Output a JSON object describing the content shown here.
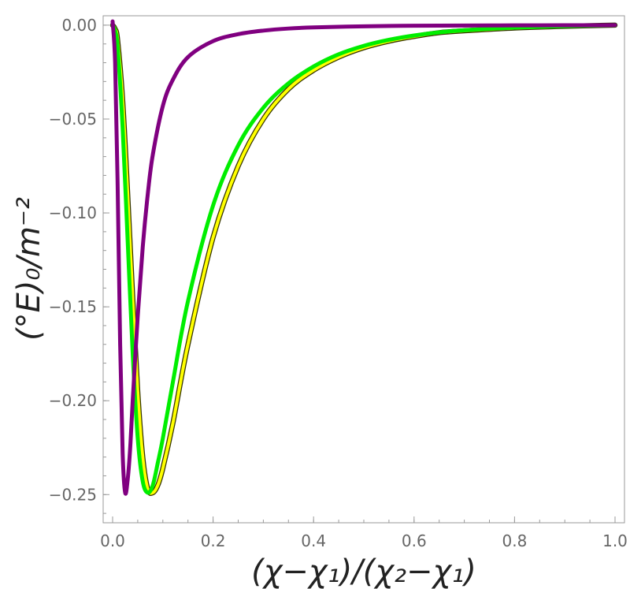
{
  "chart_data": {
    "type": "line",
    "title": "",
    "xlabel": "(χ−χ₁)/(χ₂−χ₁)",
    "ylabel": "(°E)₀/m⁻²",
    "xlim": [
      0,
      1
    ],
    "ylim": [
      -0.265,
      0.005
    ],
    "grid": false,
    "legend": "none",
    "x_ticks": [
      {
        "value": 0.0,
        "label": "0.0"
      },
      {
        "value": 0.2,
        "label": "0.2"
      },
      {
        "value": 0.4,
        "label": "0.4"
      },
      {
        "value": 0.6,
        "label": "0.6"
      },
      {
        "value": 0.8,
        "label": "0.8"
      },
      {
        "value": 1.0,
        "label": "1.0"
      }
    ],
    "y_ticks": [
      {
        "value": 0.0,
        "label": "0.00"
      },
      {
        "value": -0.05,
        "label": "-0.05"
      },
      {
        "value": -0.1,
        "label": "-0.10"
      },
      {
        "value": -0.15,
        "label": "-0.15"
      },
      {
        "value": -0.2,
        "label": "-0.20"
      },
      {
        "value": -0.25,
        "label": "-0.25"
      }
    ],
    "series": [
      {
        "color": "#ffff00",
        "outline": "#333300",
        "x": [
          0.0,
          0.005,
          0.01,
          0.02,
          0.03,
          0.04,
          0.05,
          0.06,
          0.07,
          0.08,
          0.09,
          0.1,
          0.12,
          0.15,
          0.2,
          0.25,
          0.3,
          0.35,
          0.4,
          0.45,
          0.5,
          0.55,
          0.6,
          0.65,
          0.7,
          0.8,
          0.9,
          1.0
        ],
        "y": [
          0.0,
          -0.002,
          -0.008,
          -0.04,
          -0.09,
          -0.145,
          -0.195,
          -0.23,
          -0.247,
          -0.249,
          -0.245,
          -0.236,
          -0.212,
          -0.17,
          -0.113,
          -0.075,
          -0.05,
          -0.034,
          -0.024,
          -0.017,
          -0.012,
          -0.0085,
          -0.006,
          -0.004,
          -0.003,
          -0.0015,
          -0.0006,
          0.0
        ]
      },
      {
        "color": "#00ee00",
        "outline": "",
        "x": [
          0.0,
          0.005,
          0.01,
          0.02,
          0.03,
          0.04,
          0.05,
          0.06,
          0.07,
          0.08,
          0.09,
          0.1,
          0.12,
          0.15,
          0.2,
          0.25,
          0.3,
          0.35,
          0.4,
          0.45,
          0.5,
          0.55,
          0.6,
          0.65,
          0.7,
          0.8,
          0.9,
          1.0
        ],
        "y": [
          0.0,
          -0.003,
          -0.012,
          -0.055,
          -0.115,
          -0.175,
          -0.22,
          -0.243,
          -0.249,
          -0.245,
          -0.233,
          -0.22,
          -0.19,
          -0.147,
          -0.096,
          -0.064,
          -0.044,
          -0.031,
          -0.022,
          -0.0155,
          -0.011,
          -0.0078,
          -0.0055,
          -0.0038,
          -0.0027,
          -0.0013,
          -0.0005,
          0.0
        ]
      },
      {
        "color": "#800080",
        "outline": "",
        "x": [
          0.0,
          0.005,
          0.01,
          0.015,
          0.02,
          0.025,
          0.03,
          0.035,
          0.04,
          0.05,
          0.06,
          0.07,
          0.08,
          0.1,
          0.12,
          0.15,
          0.2,
          0.25,
          0.3,
          0.35,
          0.4,
          0.5,
          0.6,
          0.7,
          0.8,
          0.9,
          1.0
        ],
        "y": [
          0.002,
          -0.02,
          -0.085,
          -0.17,
          -0.228,
          -0.249,
          -0.242,
          -0.225,
          -0.2,
          -0.155,
          -0.118,
          -0.09,
          -0.069,
          -0.043,
          -0.029,
          -0.017,
          -0.0085,
          -0.0048,
          -0.0029,
          -0.0018,
          -0.0012,
          -0.0006,
          -0.0003,
          -0.0002,
          -0.0001,
          -5e-05,
          0.0
        ]
      }
    ]
  }
}
